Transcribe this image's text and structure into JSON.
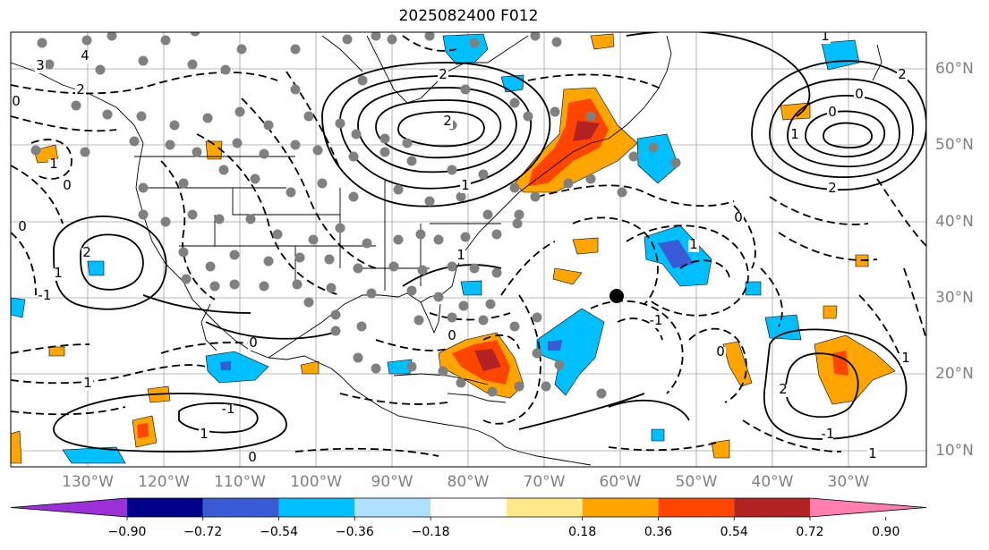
{
  "title": "2025082400 F012",
  "map": {
    "longitude_labels": [
      "130°W",
      "120°W",
      "110°W",
      "100°W",
      "90°W",
      "80°W",
      "70°W",
      "60°W",
      "50°W",
      "40°W",
      "30°W"
    ],
    "latitude_labels": [
      "60°N",
      "50°N",
      "40°N",
      "30°N",
      "20°N",
      "10°N"
    ],
    "gridlines": true,
    "contour_labels": [
      "3",
      "4",
      "0",
      "2",
      "0",
      "1",
      "0",
      "2",
      "1",
      "-1",
      "1",
      "-1",
      "0",
      "1",
      "0",
      "2",
      "2",
      "1",
      "0",
      "1",
      "-1",
      "0",
      "2",
      "-1",
      "1",
      "0",
      "0",
      "2",
      "1",
      "2",
      "1",
      "1",
      "0",
      "1"
    ],
    "marker": {
      "type": "filled-circle",
      "color": "#000000"
    },
    "station_dot_color": "#808080"
  },
  "colorbar": {
    "tick_labels": [
      "−0.90",
      "−0.72",
      "−0.54",
      "−0.36",
      "−0.18",
      "0.18",
      "0.36",
      "0.54",
      "0.72",
      "0.90"
    ],
    "levels": [
      -0.9,
      -0.72,
      -0.54,
      -0.36,
      -0.18,
      0.18,
      0.36,
      0.54,
      0.72,
      0.9
    ],
    "colors": [
      "#9b30d9",
      "#00008b",
      "#3a5bd6",
      "#00bfff",
      "#b0e0ff",
      "#ffffff",
      "#ffe88a",
      "#ffa500",
      "#ff4500",
      "#b22222",
      "#ff7fb0"
    ],
    "extend": "both"
  }
}
